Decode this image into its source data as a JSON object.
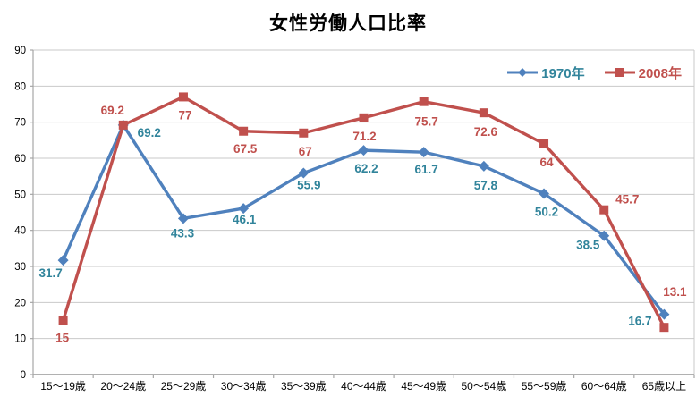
{
  "chart_data": {
    "type": "line",
    "title": "女性労働人口比率",
    "categories": [
      "15〜19歳",
      "20〜24歳",
      "25〜29歳",
      "30〜34歳",
      "35〜39歳",
      "40〜44歳",
      "45〜49歳",
      "50〜54歳",
      "55〜59歳",
      "60〜64歳",
      "65歳以上"
    ],
    "yticks": [
      0,
      10,
      20,
      30,
      40,
      50,
      60,
      70,
      80,
      90
    ],
    "ylim": [
      0,
      90
    ],
    "grid": true,
    "legend_position": "top-right",
    "series": [
      {
        "name": "1970年",
        "marker": "diamond",
        "line_color": "#4F81BD",
        "label_color": "#31849B",
        "values": [
          31.7,
          69.2,
          43.3,
          46.1,
          55.9,
          62.2,
          61.7,
          57.8,
          50.2,
          38.5,
          16.7
        ],
        "label_offsets": [
          [
            -14,
            15
          ],
          [
            29,
            9
          ],
          [
            -1,
            17
          ],
          [
            1,
            13
          ],
          [
            6,
            14
          ],
          [
            3,
            21
          ],
          [
            3,
            20
          ],
          [
            2,
            22
          ],
          [
            3,
            21
          ],
          [
            -18,
            11
          ],
          [
            -27,
            8
          ]
        ]
      },
      {
        "name": "2008年",
        "marker": "square",
        "line_color": "#C0504D",
        "label_color": "#C0504D",
        "values": [
          15,
          69.2,
          77,
          67.5,
          67,
          71.2,
          75.7,
          72.6,
          64,
          45.7,
          13.1
        ],
        "label_offsets": [
          [
            -1,
            20
          ],
          [
            -12,
            -16
          ],
          [
            2,
            21
          ],
          [
            2,
            20
          ],
          [
            2,
            21
          ],
          [
            1,
            21
          ],
          [
            3,
            23
          ],
          [
            2,
            22
          ],
          [
            3,
            21
          ],
          [
            26,
            -11
          ],
          [
            12,
            -39
          ]
        ]
      }
    ],
    "colors": {
      "background": "#FFFFFF",
      "gridline": "#C9C9C9",
      "axis": "#A6A6A6",
      "tick_text": "#000000",
      "title_text": "#000000"
    }
  }
}
